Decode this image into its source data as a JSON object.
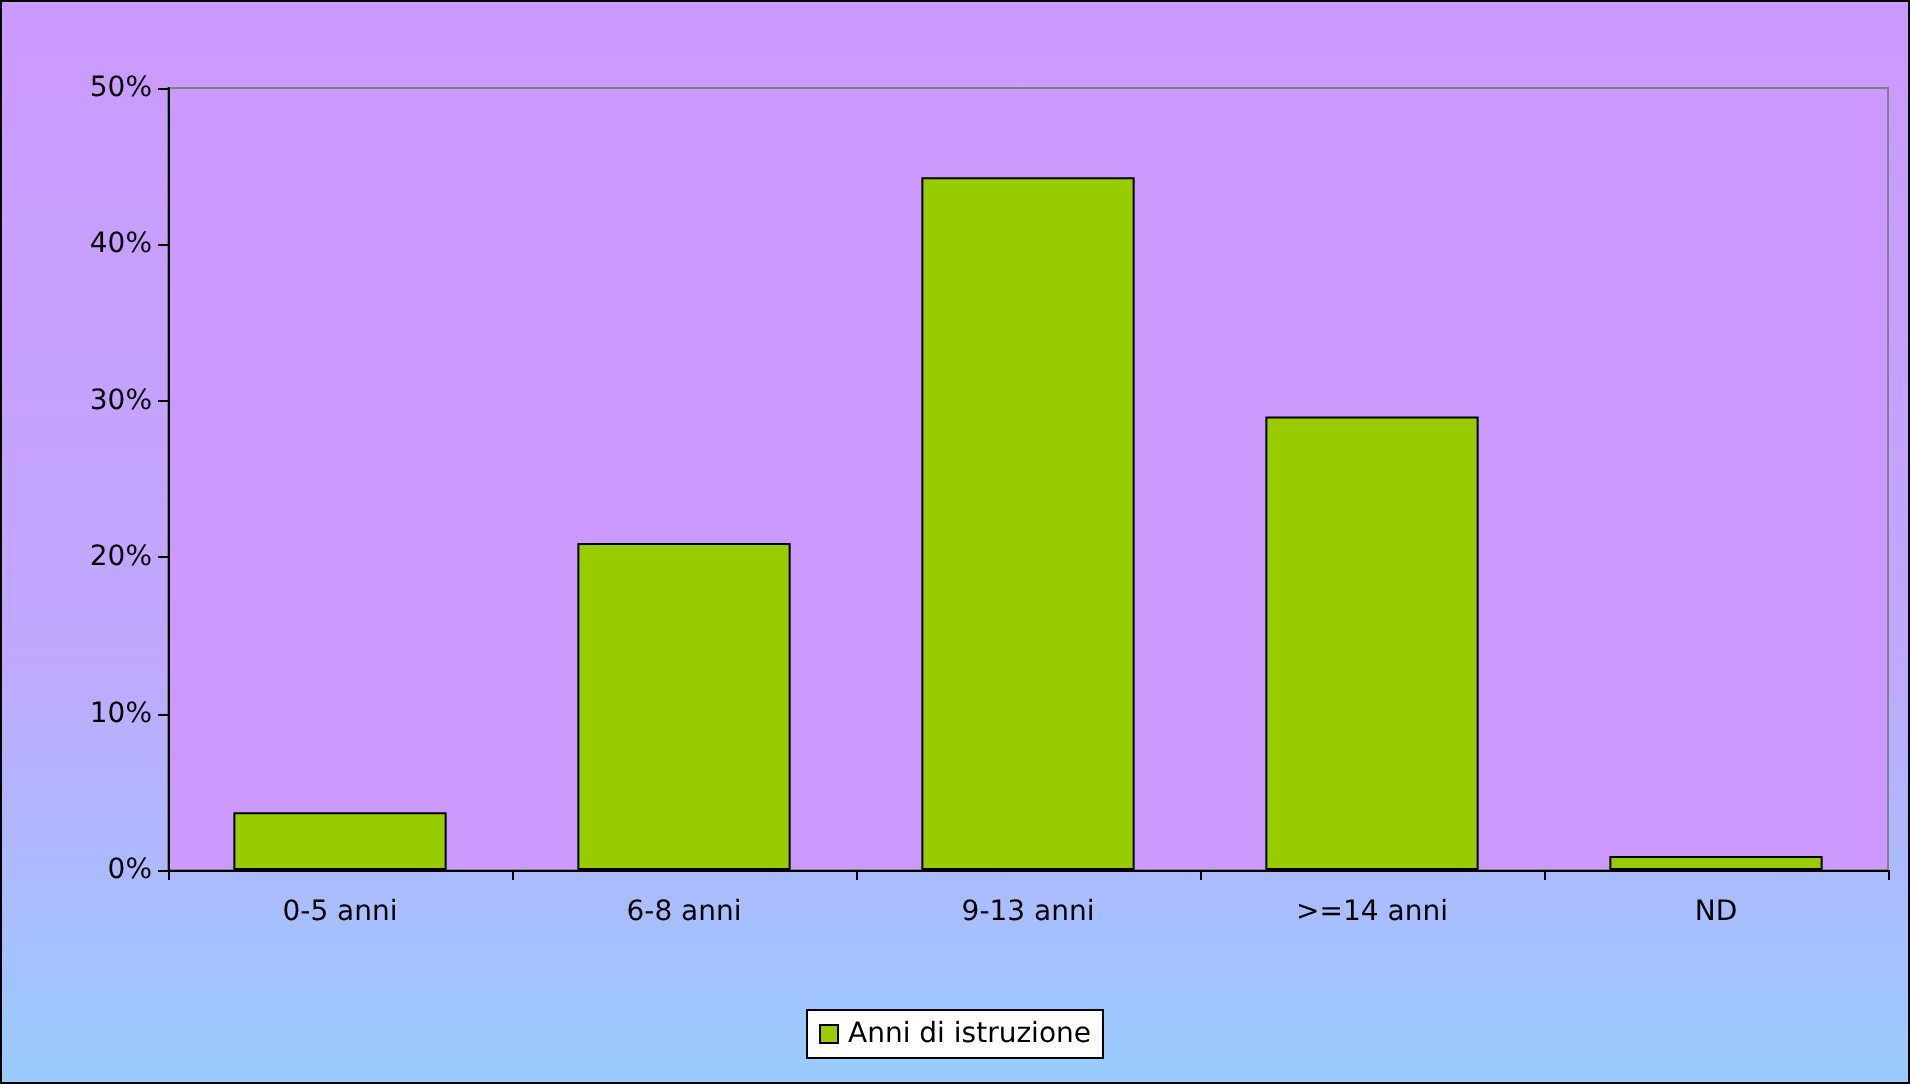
{
  "chart_data": {
    "type": "bar",
    "categories": [
      "0-5 anni",
      "6-8 anni",
      "9-13 anni",
      ">=14 anni",
      "ND"
    ],
    "series": [
      {
        "name": "Anni di istruzione",
        "color": "#99cc00",
        "values": [
          3.7,
          20.9,
          44.3,
          29.0,
          0.9
        ]
      }
    ],
    "ylim": [
      0,
      50
    ],
    "yticks": [
      {
        "value": 0,
        "label": "0%"
      },
      {
        "value": 10,
        "label": "10%"
      },
      {
        "value": 20,
        "label": "20%"
      },
      {
        "value": 30,
        "label": "30%"
      },
      {
        "value": 40,
        "label": "40%"
      },
      {
        "value": 50,
        "label": "50%"
      }
    ],
    "grid": false,
    "legend": "bottom"
  }
}
